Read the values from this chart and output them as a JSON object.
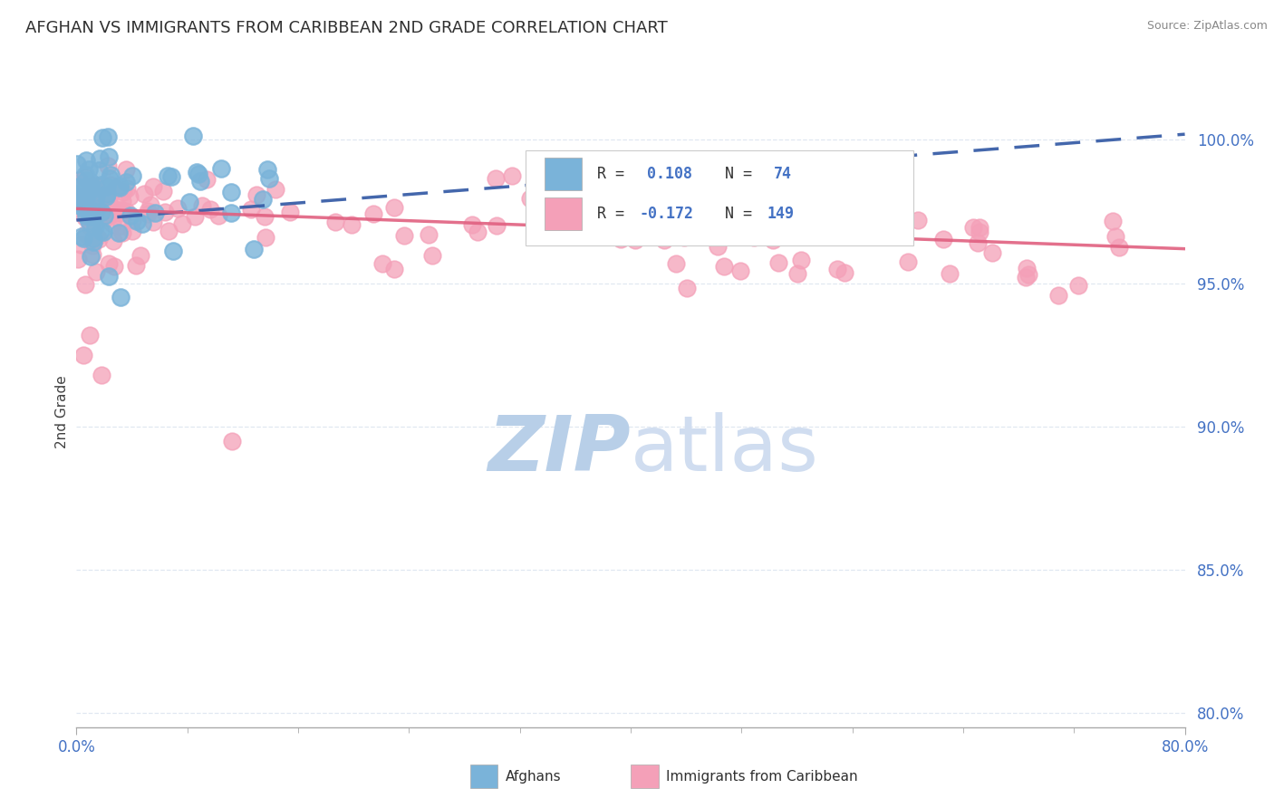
{
  "title": "AFGHAN VS IMMIGRANTS FROM CARIBBEAN 2ND GRADE CORRELATION CHART",
  "source": "Source: ZipAtlas.com",
  "ylabel": "2nd Grade",
  "yaxis_labels": [
    "80.0%",
    "85.0%",
    "90.0%",
    "95.0%",
    "100.0%"
  ],
  "yaxis_values": [
    80.0,
    85.0,
    90.0,
    95.0,
    100.0
  ],
  "xlim": [
    0.0,
    80.0
  ],
  "ylim": [
    79.5,
    101.5
  ],
  "blue_color": "#7ab3d9",
  "pink_color": "#f4a0b8",
  "trend_blue_color": "#3a5fa8",
  "trend_pink_color": "#e06080",
  "title_color": "#303030",
  "axis_label_color": "#4472c4",
  "watermark_zip_color": "#b8cfe8",
  "watermark_atlas_color": "#d0ddf0",
  "source_color": "#888888",
  "ylabel_color": "#404040",
  "legend_border_color": "#cccccc",
  "grid_color": "#dde5f0",
  "bottom_axis_color": "#aaaaaa"
}
